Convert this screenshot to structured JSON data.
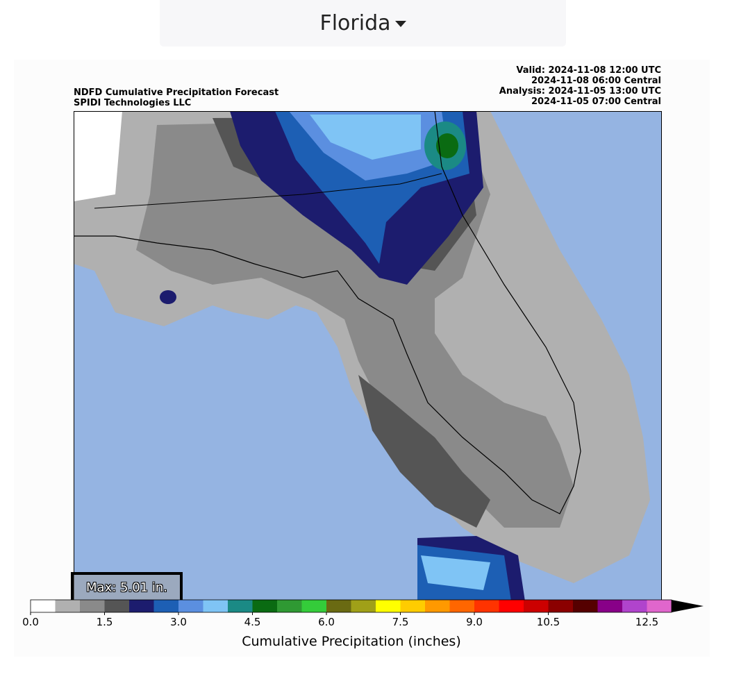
{
  "dropdown": {
    "selected": "Florida"
  },
  "header": {
    "title_lines": [
      "NDFD Cumulative Precipitation Forecast",
      "SPIDI Technologies LLC"
    ],
    "time_lines": [
      "Valid: 2024-11-08 12:00 UTC",
      "2024-11-08 06:00 Central",
      "Analysis: 2024-11-05 13:00 UTC",
      "2024-11-05 07:00 Central"
    ]
  },
  "max_label": "Max: 5.01 in.",
  "colorbar": {
    "label": "Cumulative Precipitation (inches)",
    "min": 0.0,
    "step": 0.5,
    "extend": "max",
    "tick_labels": [
      "0.0",
      "1.5",
      "3.0",
      "4.5",
      "6.0",
      "7.5",
      "9.0",
      "10.5",
      "12.5"
    ],
    "tick_values": [
      0,
      1.5,
      3.0,
      4.5,
      6.0,
      7.5,
      9.0,
      10.5,
      12.5
    ],
    "colors": [
      "#ffffff",
      "#b0b0b0",
      "#8a8a8a",
      "#555555",
      "#1c1c6e",
      "#1d5fb4",
      "#5b8fe0",
      "#7fc4f5",
      "#1b8a85",
      "#0a6b12",
      "#2f9933",
      "#34cc3a",
      "#6a6a12",
      "#a0a018",
      "#ffff00",
      "#ffcc00",
      "#ff9900",
      "#ff6600",
      "#ff3300",
      "#ff0000",
      "#cc0000",
      "#8b0000",
      "#550000",
      "#880088",
      "#b044cc",
      "#e066cc"
    ],
    "extend_color": "#000000"
  },
  "map_colors": {
    "ocean": "#95b4e2",
    "land_light": "#b0b0b0",
    "land_mid": "#8a8a8a",
    "land_dark": "#555555"
  },
  "icons": {
    "dropdown_caret": "caret-down-icon"
  }
}
